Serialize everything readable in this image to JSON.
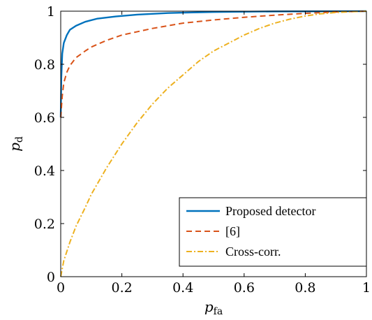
{
  "chart_data": {
    "type": "line",
    "title": "",
    "xlabel": {
      "main": "p",
      "sub": "fa"
    },
    "ylabel": {
      "main": "p",
      "sub": "d"
    },
    "xlim": [
      0,
      1
    ],
    "ylim": [
      0,
      1
    ],
    "xticks": [
      0,
      0.2,
      0.4,
      0.6,
      0.8,
      1
    ],
    "yticks": [
      0,
      0.2,
      0.4,
      0.6,
      0.8,
      1
    ],
    "xtick_labels": [
      "0",
      "0.2",
      "0.4",
      "0.6",
      "0.8",
      "1"
    ],
    "ytick_labels": [
      "0",
      "0.2",
      "0.4",
      "0.6",
      "0.8",
      "1"
    ],
    "grid": false,
    "legend_position": "bottom-right",
    "series": [
      {
        "name": "Proposed detector",
        "color": "#0072BD",
        "style": "solid",
        "points": [
          [
            0,
            0.6
          ],
          [
            0.002,
            0.75
          ],
          [
            0.005,
            0.84
          ],
          [
            0.01,
            0.88
          ],
          [
            0.02,
            0.91
          ],
          [
            0.03,
            0.93
          ],
          [
            0.05,
            0.945
          ],
          [
            0.08,
            0.96
          ],
          [
            0.12,
            0.972
          ],
          [
            0.18,
            0.98
          ],
          [
            0.25,
            0.987
          ],
          [
            0.35,
            0.993
          ],
          [
            0.5,
            0.997
          ],
          [
            0.7,
            0.999
          ],
          [
            1,
            1
          ]
        ]
      },
      {
        "name": "[6]",
        "color": "#D95319",
        "style": "dashed",
        "points": [
          [
            0,
            0.6
          ],
          [
            0.005,
            0.68
          ],
          [
            0.01,
            0.73
          ],
          [
            0.02,
            0.77
          ],
          [
            0.03,
            0.795
          ],
          [
            0.05,
            0.825
          ],
          [
            0.08,
            0.85
          ],
          [
            0.1,
            0.865
          ],
          [
            0.15,
            0.89
          ],
          [
            0.2,
            0.91
          ],
          [
            0.3,
            0.935
          ],
          [
            0.4,
            0.955
          ],
          [
            0.5,
            0.967
          ],
          [
            0.6,
            0.977
          ],
          [
            0.7,
            0.985
          ],
          [
            0.8,
            0.992
          ],
          [
            0.9,
            0.997
          ],
          [
            1,
            1
          ]
        ]
      },
      {
        "name": "Cross-corr.",
        "color": "#EDB120",
        "style": "dashdot",
        "points": [
          [
            0,
            0
          ],
          [
            0.01,
            0.06
          ],
          [
            0.03,
            0.13
          ],
          [
            0.05,
            0.19
          ],
          [
            0.08,
            0.26
          ],
          [
            0.1,
            0.31
          ],
          [
            0.15,
            0.41
          ],
          [
            0.2,
            0.5
          ],
          [
            0.25,
            0.58
          ],
          [
            0.3,
            0.65
          ],
          [
            0.35,
            0.71
          ],
          [
            0.4,
            0.76
          ],
          [
            0.45,
            0.81
          ],
          [
            0.5,
            0.85
          ],
          [
            0.55,
            0.88
          ],
          [
            0.6,
            0.91
          ],
          [
            0.65,
            0.935
          ],
          [
            0.7,
            0.955
          ],
          [
            0.75,
            0.97
          ],
          [
            0.8,
            0.982
          ],
          [
            0.85,
            0.99
          ],
          [
            0.9,
            0.995
          ],
          [
            0.95,
            0.998
          ],
          [
            1,
            1
          ]
        ]
      }
    ]
  }
}
